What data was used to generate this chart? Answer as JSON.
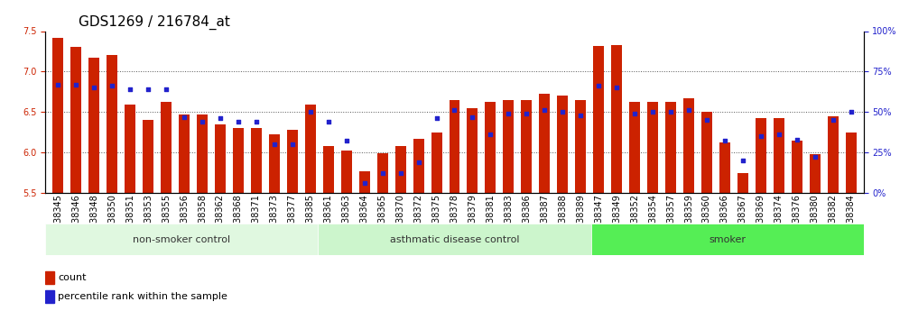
{
  "title": "GDS1269 / 216784_at",
  "samples": [
    "GSM38345",
    "GSM38346",
    "GSM38348",
    "GSM38350",
    "GSM38351",
    "GSM38353",
    "GSM38355",
    "GSM38356",
    "GSM38358",
    "GSM38362",
    "GSM38368",
    "GSM38371",
    "GSM38373",
    "GSM38377",
    "GSM38385",
    "GSM38361",
    "GSM38363",
    "GSM38364",
    "GSM38365",
    "GSM38370",
    "GSM38372",
    "GSM38375",
    "GSM38378",
    "GSM38379",
    "GSM38381",
    "GSM38383",
    "GSM38386",
    "GSM38387",
    "GSM38388",
    "GSM38389",
    "GSM38347",
    "GSM38349",
    "GSM38352",
    "GSM38354",
    "GSM38357",
    "GSM38359",
    "GSM38360",
    "GSM38366",
    "GSM38367",
    "GSM38369",
    "GSM38374",
    "GSM38376",
    "GSM38380",
    "GSM38382",
    "GSM38384"
  ],
  "count_values": [
    7.42,
    7.3,
    7.17,
    7.21,
    6.59,
    6.4,
    6.62,
    6.47,
    6.47,
    6.35,
    6.3,
    6.3,
    6.22,
    6.28,
    6.59,
    6.08,
    6.02,
    5.77,
    5.99,
    6.08,
    6.17,
    6.25,
    6.65,
    6.55,
    6.63,
    6.65,
    6.65,
    6.72,
    6.7,
    6.65,
    7.32,
    7.33,
    6.63,
    6.63,
    6.63,
    6.67,
    6.5,
    6.12,
    5.74,
    6.42,
    6.42,
    6.15,
    5.98,
    6.45,
    6.25
  ],
  "percentile_values": [
    67,
    67,
    65,
    66,
    64,
    64,
    64,
    47,
    44,
    46,
    44,
    44,
    30,
    30,
    50,
    44,
    32,
    6,
    12,
    12,
    19,
    46,
    51,
    47,
    36,
    49,
    49,
    51,
    50,
    48,
    66,
    65,
    49,
    50,
    50,
    51,
    45,
    32,
    20,
    35,
    36,
    33,
    22,
    45,
    50
  ],
  "groups": [
    {
      "label": "non-smoker control",
      "start": 0,
      "end": 15,
      "color": "#ccffcc"
    },
    {
      "label": "asthmatic disease control",
      "start": 15,
      "end": 30,
      "color": "#aaffaa"
    },
    {
      "label": "smoker",
      "start": 30,
      "end": 45,
      "color": "#55ee55"
    }
  ],
  "ylim_left": [
    5.5,
    7.5
  ],
  "ylim_right": [
    0,
    100
  ],
  "yticks_left": [
    5.5,
    6.0,
    6.5,
    7.0,
    7.5
  ],
  "yticks_right": [
    0,
    25,
    50,
    75,
    100
  ],
  "ytick_labels_right": [
    "0%",
    "25%",
    "50%",
    "75%",
    "100%"
  ],
  "bar_color": "#cc2200",
  "dot_color": "#2222cc",
  "background_color": "#ffffff",
  "gridline_color": "#555555",
  "title_fontsize": 11,
  "tick_fontsize": 7,
  "label_fontsize": 8,
  "group_label_fontsize": 8
}
